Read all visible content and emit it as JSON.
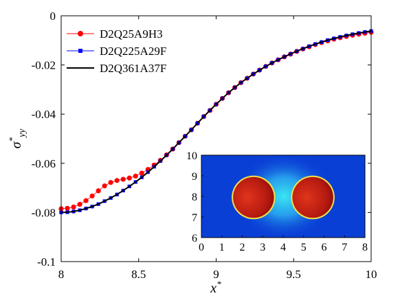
{
  "chart_data": [
    {
      "type": "line",
      "xlabel": "x*",
      "ylabel": "σ*yy",
      "xlim": [
        8,
        10
      ],
      "ylim": [
        -0.1,
        0
      ],
      "xticks": [
        "8",
        "8.5",
        "9",
        "9.5",
        "10"
      ],
      "yticks": [
        "0",
        "-0.02",
        "-0.04",
        "-0.06",
        "-0.08",
        "-0.1"
      ],
      "grid": false,
      "legend_position": "top-left",
      "series": [
        {
          "name": "D2Q25A9H3",
          "color": "#ff0000",
          "marker": "circle",
          "x": [
            8.0,
            8.04,
            8.08,
            8.12,
            8.16,
            8.2,
            8.24,
            8.28,
            8.32,
            8.36,
            8.4,
            8.44,
            8.48,
            8.52,
            8.56,
            8.6,
            8.64,
            8.68,
            8.72,
            8.76,
            8.8,
            8.84,
            8.88,
            8.92,
            8.96,
            9.0,
            9.04,
            9.08,
            9.12,
            9.16,
            9.2,
            9.24,
            9.28,
            9.32,
            9.36,
            9.4,
            9.44,
            9.48,
            9.52,
            9.56,
            9.6,
            9.64,
            9.68,
            9.72,
            9.76,
            9.8,
            9.84,
            9.88,
            9.92,
            9.96,
            10.0
          ],
          "y": [
            -0.0785,
            -0.0783,
            -0.0778,
            -0.0767,
            -0.0752,
            -0.0733,
            -0.0712,
            -0.0692,
            -0.0678,
            -0.067,
            -0.0665,
            -0.066,
            -0.0652,
            -0.064,
            -0.0625,
            -0.0607,
            -0.0588,
            -0.0566,
            -0.0542,
            -0.0516,
            -0.049,
            -0.0464,
            -0.0437,
            -0.041,
            -0.0385,
            -0.036,
            -0.0336,
            -0.0313,
            -0.0292,
            -0.0272,
            -0.0254,
            -0.0237,
            -0.0221,
            -0.0206,
            -0.0192,
            -0.0179,
            -0.0167,
            -0.0156,
            -0.0145,
            -0.0135,
            -0.0126,
            -0.0117,
            -0.0109,
            -0.0102,
            -0.0095,
            -0.0089,
            -0.0084,
            -0.0079,
            -0.0075,
            -0.0071,
            -0.0067
          ]
        },
        {
          "name": "D2Q225A29F",
          "color": "#0000ff",
          "marker": "square",
          "x": [
            8.0,
            8.04,
            8.08,
            8.12,
            8.16,
            8.2,
            8.24,
            8.28,
            8.32,
            8.36,
            8.4,
            8.44,
            8.48,
            8.52,
            8.56,
            8.6,
            8.64,
            8.68,
            8.72,
            8.76,
            8.8,
            8.84,
            8.88,
            8.92,
            8.96,
            9.0,
            9.04,
            9.08,
            9.12,
            9.16,
            9.2,
            9.24,
            9.28,
            9.32,
            9.36,
            9.4,
            9.44,
            9.48,
            9.52,
            9.56,
            9.6,
            9.64,
            9.68,
            9.72,
            9.76,
            9.8,
            9.84,
            9.88,
            9.92,
            9.96,
            10.0
          ],
          "y": [
            -0.08,
            -0.0799,
            -0.0796,
            -0.0791,
            -0.0784,
            -0.0776,
            -0.0766,
            -0.0754,
            -0.0741,
            -0.0727,
            -0.0711,
            -0.0694,
            -0.0676,
            -0.0657,
            -0.0636,
            -0.0614,
            -0.0591,
            -0.0567,
            -0.0542,
            -0.0516,
            -0.049,
            -0.0464,
            -0.0437,
            -0.041,
            -0.0385,
            -0.036,
            -0.0336,
            -0.0313,
            -0.0292,
            -0.0272,
            -0.0254,
            -0.0237,
            -0.0221,
            -0.0206,
            -0.0192,
            -0.0179,
            -0.0167,
            -0.0155,
            -0.0144,
            -0.0134,
            -0.0124,
            -0.0115,
            -0.0107,
            -0.0099,
            -0.0092,
            -0.0086,
            -0.008,
            -0.0075,
            -0.007,
            -0.0066,
            -0.0062
          ]
        },
        {
          "name": "D2Q361A37F",
          "color": "#000000",
          "marker": "none",
          "x": [
            8.0,
            8.04,
            8.08,
            8.12,
            8.16,
            8.2,
            8.24,
            8.28,
            8.32,
            8.36,
            8.4,
            8.44,
            8.48,
            8.52,
            8.56,
            8.6,
            8.64,
            8.68,
            8.72,
            8.76,
            8.8,
            8.84,
            8.88,
            8.92,
            8.96,
            9.0,
            9.04,
            9.08,
            9.12,
            9.16,
            9.2,
            9.24,
            9.28,
            9.32,
            9.36,
            9.4,
            9.44,
            9.48,
            9.52,
            9.56,
            9.6,
            9.64,
            9.68,
            9.72,
            9.76,
            9.8,
            9.84,
            9.88,
            9.92,
            9.96,
            10.0
          ],
          "y": [
            -0.08,
            -0.0799,
            -0.0796,
            -0.0791,
            -0.0784,
            -0.0776,
            -0.0766,
            -0.0754,
            -0.0741,
            -0.0727,
            -0.0711,
            -0.0694,
            -0.0676,
            -0.0657,
            -0.0636,
            -0.0614,
            -0.0591,
            -0.0567,
            -0.0542,
            -0.0516,
            -0.049,
            -0.0464,
            -0.0437,
            -0.041,
            -0.0385,
            -0.036,
            -0.0336,
            -0.0313,
            -0.0292,
            -0.0272,
            -0.0254,
            -0.0237,
            -0.0221,
            -0.0206,
            -0.0192,
            -0.0179,
            -0.0167,
            -0.0155,
            -0.0144,
            -0.0134,
            -0.0124,
            -0.0115,
            -0.0107,
            -0.0099,
            -0.0092,
            -0.0086,
            -0.008,
            -0.0075,
            -0.007,
            -0.0066,
            -0.0062
          ]
        }
      ]
    },
    {
      "type": "heatmap",
      "xlim": [
        0,
        8
      ],
      "ylim": [
        6,
        10
      ],
      "xticks": [
        "0",
        "1",
        "2",
        "3",
        "4",
        "5",
        "6",
        "7",
        "8"
      ],
      "yticks": [
        "6",
        "7",
        "8",
        "9",
        "10"
      ],
      "background_color": "#0a3fd6",
      "particles": [
        {
          "cx": 2.55,
          "cy": 7.95,
          "r": 1.0,
          "color": "#b81a12"
        },
        {
          "cx": 5.45,
          "cy": 7.95,
          "r": 1.0,
          "color": "#b81a12"
        }
      ]
    }
  ]
}
